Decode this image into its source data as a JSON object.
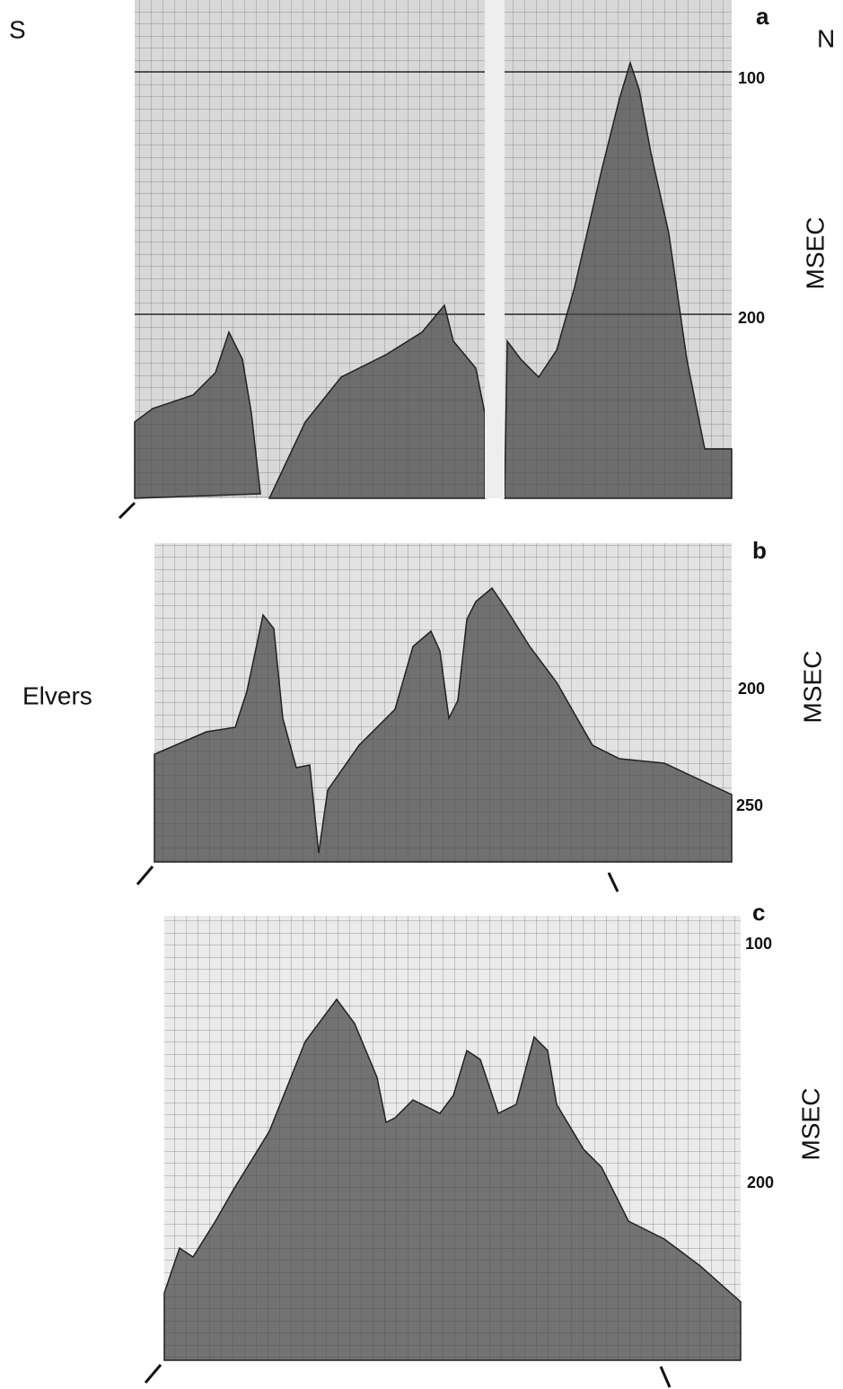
{
  "labels": {
    "south": "S",
    "north": "N",
    "location": "Elvers"
  },
  "panels": [
    {
      "label": "a",
      "ticks": [
        "100",
        "200"
      ],
      "axis_label": "MSEC"
    },
    {
      "label": "b",
      "ticks": [
        "200",
        "250"
      ],
      "axis_label": "MSEC"
    },
    {
      "label": "c",
      "ticks": [
        "100",
        "200"
      ],
      "axis_label": "MSEC"
    }
  ]
}
